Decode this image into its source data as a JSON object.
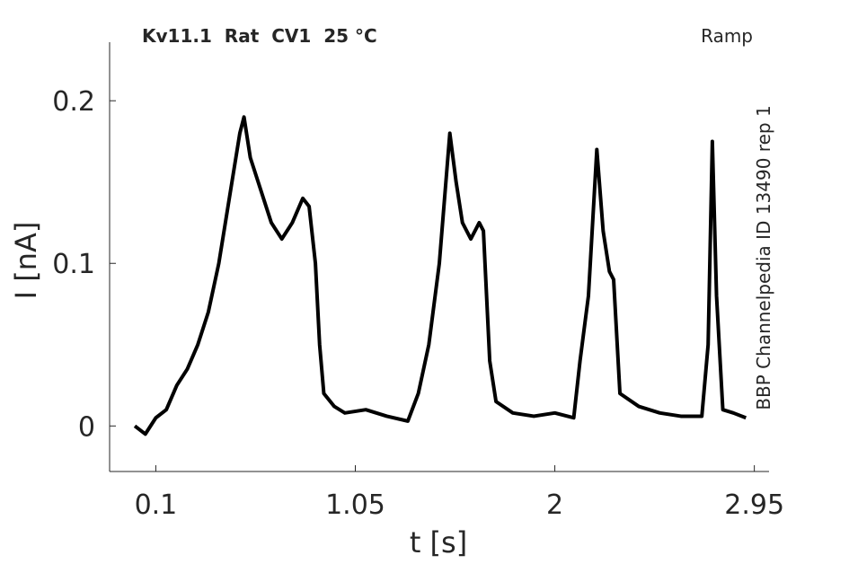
{
  "chart_data": {
    "type": "line",
    "title": "Kv11.1  Rat  CV1  25 °C",
    "subtitle": "Ramp",
    "annotation": "BBP Channelpedia ID 13490 rep 1",
    "xlabel": "t [s]",
    "ylabel": "I [nA]",
    "xlim": [
      -0.12,
      3.02
    ],
    "ylim": [
      -0.028,
      0.236
    ],
    "xticks": [
      0.1,
      1.05,
      2,
      2.95
    ],
    "yticks": [
      0,
      0.1,
      0.2
    ],
    "grid": false,
    "x": [
      0.0,
      0.05,
      0.1,
      0.15,
      0.2,
      0.25,
      0.3,
      0.35,
      0.4,
      0.45,
      0.5,
      0.52,
      0.55,
      0.6,
      0.65,
      0.7,
      0.75,
      0.8,
      0.83,
      0.86,
      0.88,
      0.9,
      0.95,
      1.0,
      1.1,
      1.2,
      1.3,
      1.35,
      1.4,
      1.45,
      1.5,
      1.53,
      1.56,
      1.6,
      1.64,
      1.66,
      1.69,
      1.72,
      1.8,
      1.9,
      2.0,
      2.09,
      2.12,
      2.16,
      2.2,
      2.23,
      2.26,
      2.28,
      2.31,
      2.4,
      2.5,
      2.6,
      2.7,
      2.73,
      2.75,
      2.77,
      2.8,
      2.85,
      2.91
    ],
    "series": [
      {
        "name": "I",
        "color": "#000000",
        "values": [
          0.0,
          -0.005,
          0.005,
          0.01,
          0.025,
          0.035,
          0.05,
          0.07,
          0.1,
          0.14,
          0.18,
          0.19,
          0.165,
          0.145,
          0.125,
          0.115,
          0.125,
          0.14,
          0.135,
          0.1,
          0.05,
          0.02,
          0.012,
          0.008,
          0.01,
          0.006,
          0.003,
          0.02,
          0.05,
          0.1,
          0.18,
          0.15,
          0.125,
          0.115,
          0.125,
          0.12,
          0.04,
          0.015,
          0.008,
          0.006,
          0.008,
          0.005,
          0.04,
          0.08,
          0.17,
          0.12,
          0.095,
          0.09,
          0.02,
          0.012,
          0.008,
          0.006,
          0.006,
          0.05,
          0.175,
          0.08,
          0.01,
          0.008,
          0.005
        ]
      }
    ]
  }
}
